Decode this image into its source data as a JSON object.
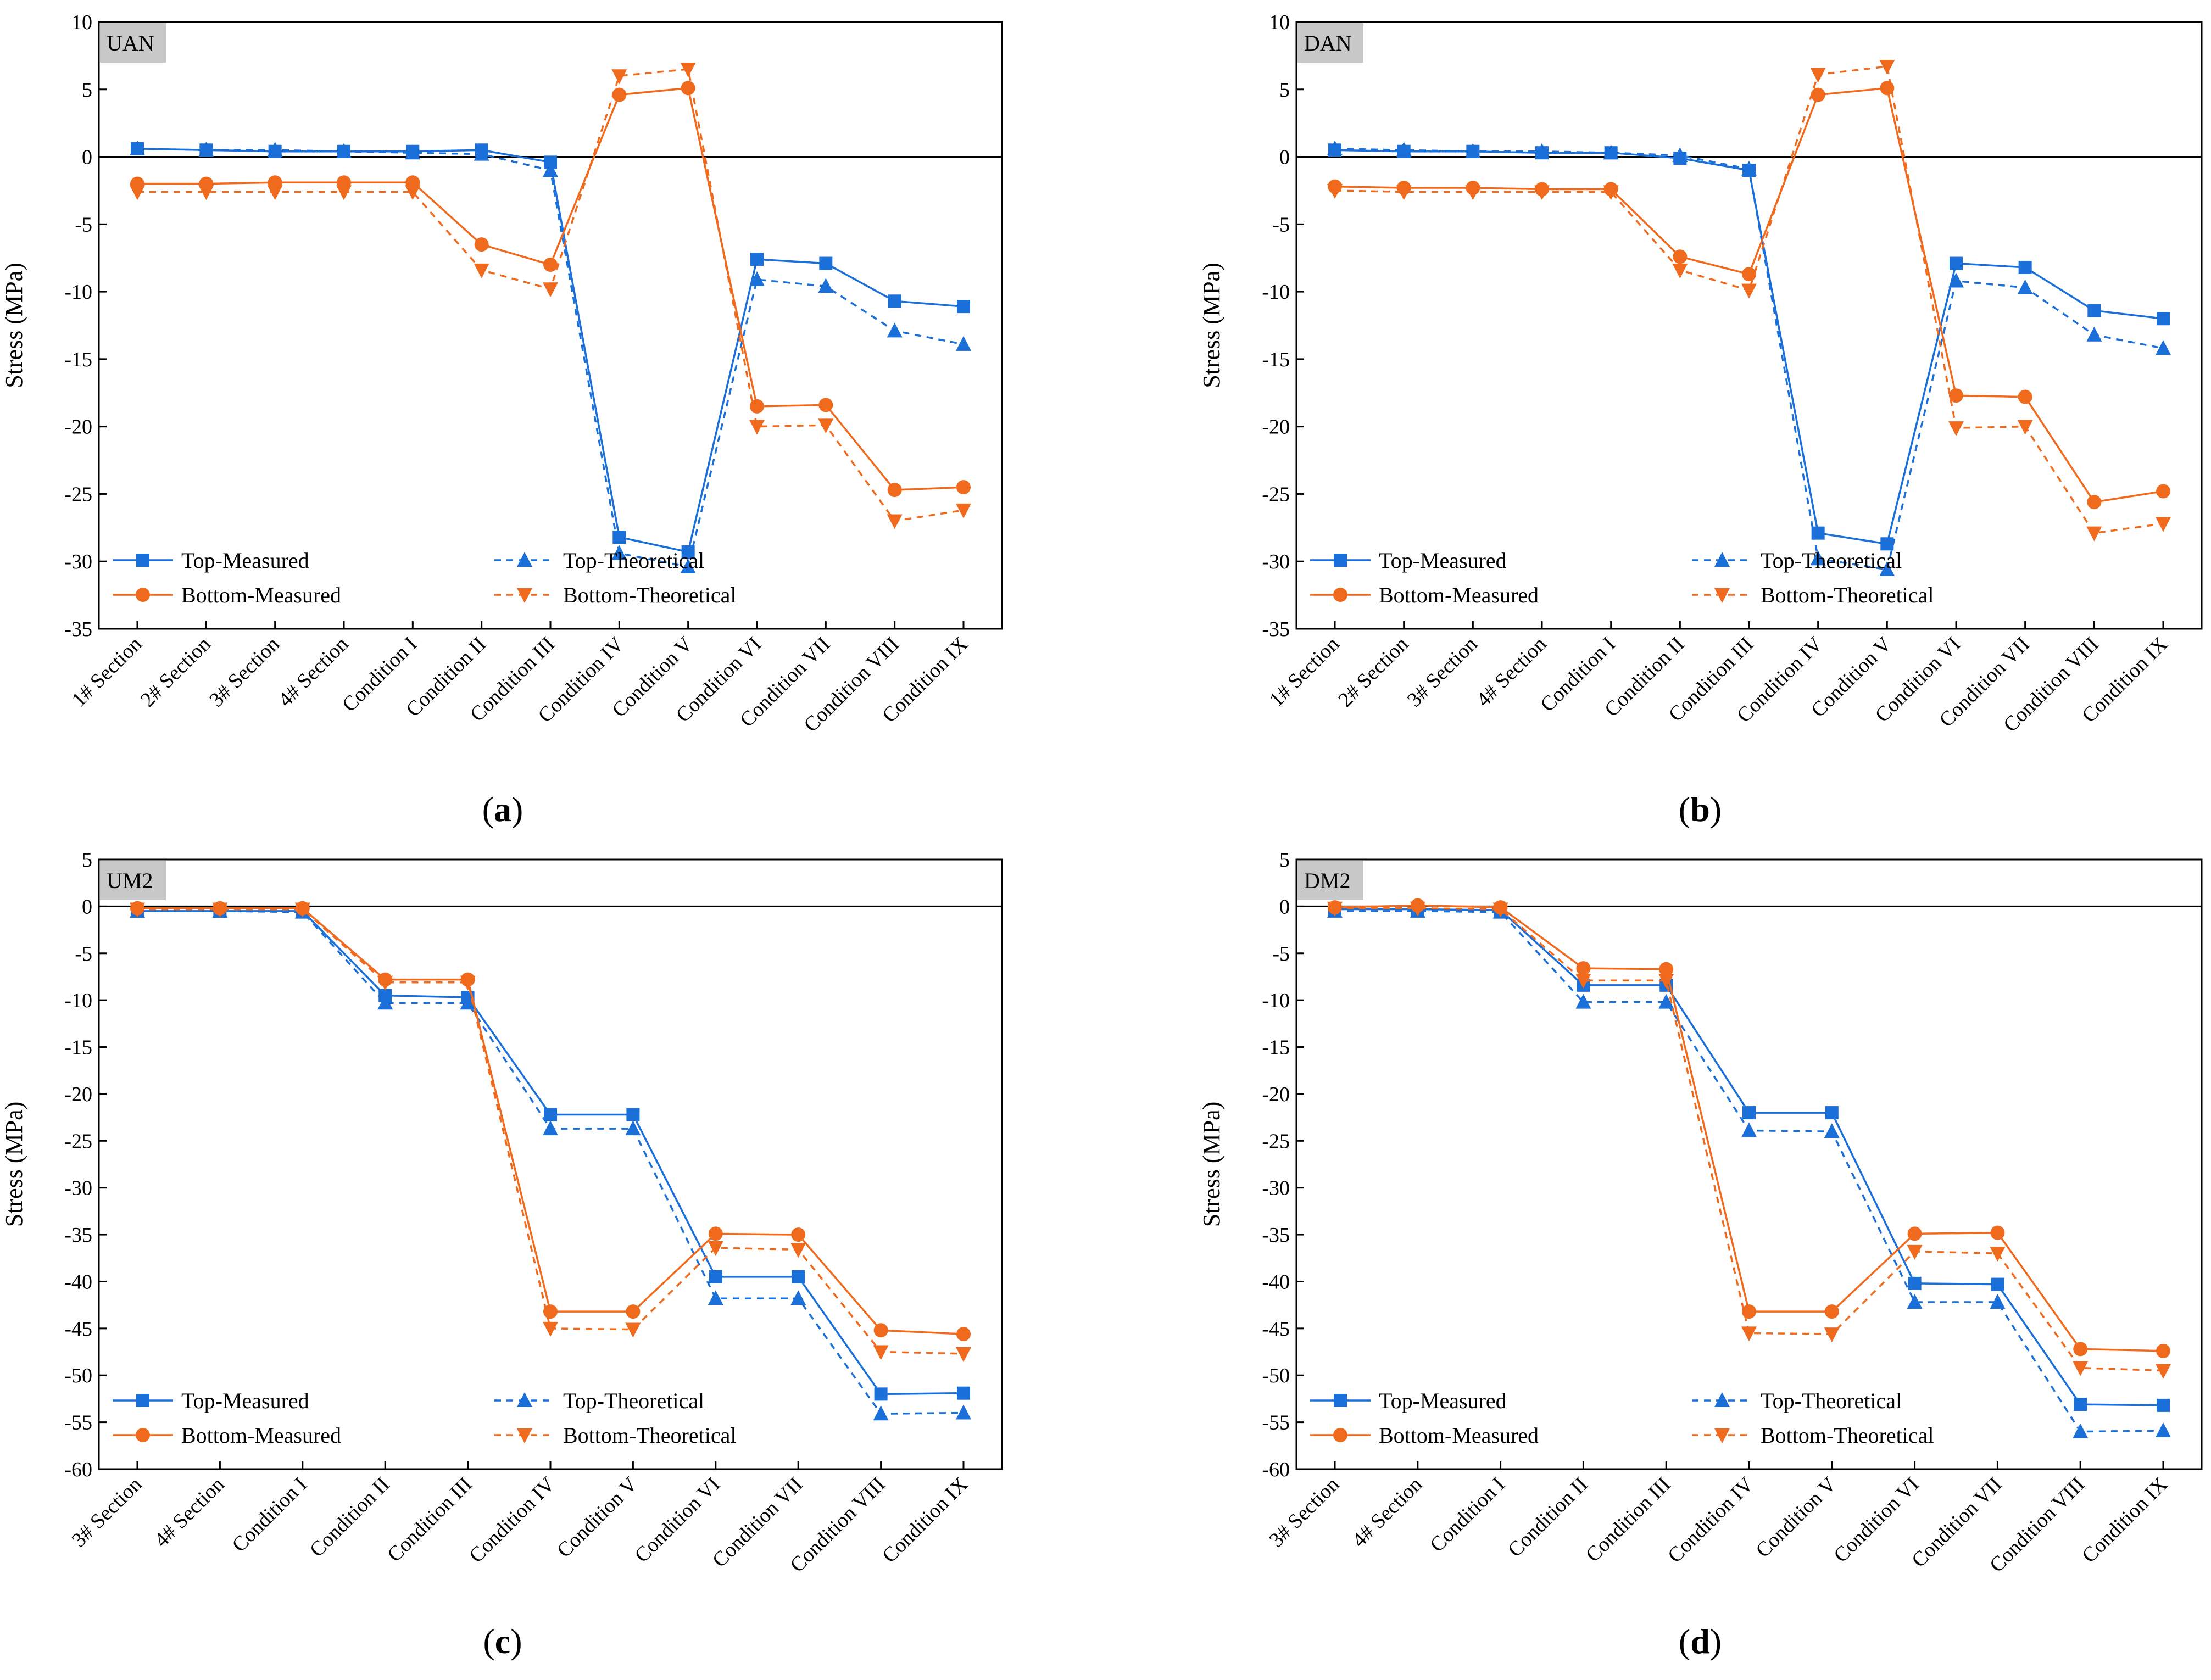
{
  "colors": {
    "top": "#1a6fd8",
    "bottom": "#f06a1e",
    "tag_bg": "#c8c8c8",
    "axis": "#000000"
  },
  "legend": [
    "Top-Measured",
    "Top-Theoretical",
    "Bottom-Measured",
    "Bottom-Theoretical"
  ],
  "chart_data": [
    {
      "type": "line",
      "panel_label": "UAN",
      "caption": "a",
      "ylabel": "Stress (MPa)",
      "xlabel": "",
      "ylim": [
        -35,
        10
      ],
      "yticks": [
        10,
        5,
        0,
        -5,
        -10,
        -15,
        -20,
        -25,
        -30,
        -35
      ],
      "categories": [
        "1# Section",
        "2# Section",
        "3# Section",
        "4# Section",
        "Condition I",
        "Condition II",
        "Condition III",
        "Condition IV",
        "Condition V",
        "Condition VI",
        "Condition VII",
        "Condition VIII",
        "Condition IX"
      ],
      "series": [
        {
          "name": "Top-Measured",
          "values": [
            0.6,
            0.5,
            0.4,
            0.4,
            0.4,
            0.5,
            -0.4,
            -28.2,
            -29.3,
            -7.6,
            -7.9,
            -10.7,
            -11.1
          ]
        },
        {
          "name": "Top-Theoretical",
          "values": [
            0.6,
            0.5,
            0.5,
            0.4,
            0.3,
            0.2,
            -1.0,
            -29.4,
            -30.4,
            -9.1,
            -9.6,
            -12.9,
            -13.9
          ]
        },
        {
          "name": "Bottom-Measured",
          "values": [
            -2.0,
            -2.0,
            -1.9,
            -1.9,
            -1.9,
            -6.5,
            -8.0,
            4.6,
            5.1,
            -18.5,
            -18.4,
            -24.7,
            -24.5
          ]
        },
        {
          "name": "Bottom-Theoretical",
          "values": [
            -2.6,
            -2.6,
            -2.6,
            -2.6,
            -2.6,
            -8.4,
            -9.8,
            6.0,
            6.5,
            -20.0,
            -19.9,
            -27.0,
            -26.2
          ]
        }
      ]
    },
    {
      "type": "line",
      "panel_label": "DAN",
      "caption": "b",
      "ylabel": "Stress (MPa)",
      "xlabel": "",
      "ylim": [
        -35,
        10
      ],
      "yticks": [
        10,
        5,
        0,
        -5,
        -10,
        -15,
        -20,
        -25,
        -30,
        -35
      ],
      "categories": [
        "1# Section",
        "2# Section",
        "3# Section",
        "4# Section",
        "Condition I",
        "Condition II",
        "Condition III",
        "Condition IV",
        "Condition V",
        "Condition VI",
        "Condition VII",
        "Condition VIII",
        "Condition IX"
      ],
      "series": [
        {
          "name": "Top-Measured",
          "values": [
            0.5,
            0.4,
            0.4,
            0.3,
            0.3,
            -0.1,
            -1.0,
            -27.9,
            -28.7,
            -7.9,
            -8.2,
            -11.4,
            -12.0
          ]
        },
        {
          "name": "Top-Theoretical",
          "values": [
            0.6,
            0.5,
            0.4,
            0.4,
            0.3,
            0.1,
            -0.9,
            -29.8,
            -30.6,
            -9.2,
            -9.7,
            -13.2,
            -14.2
          ]
        },
        {
          "name": "Bottom-Measured",
          "values": [
            -2.2,
            -2.3,
            -2.3,
            -2.4,
            -2.4,
            -7.4,
            -8.7,
            4.6,
            5.1,
            -17.7,
            -17.8,
            -25.6,
            -24.8
          ]
        },
        {
          "name": "Bottom-Theoretical",
          "values": [
            -2.5,
            -2.6,
            -2.6,
            -2.6,
            -2.6,
            -8.4,
            -9.9,
            6.1,
            6.7,
            -20.1,
            -20.0,
            -27.9,
            -27.2
          ]
        }
      ]
    },
    {
      "type": "line",
      "panel_label": "UM2",
      "caption": "c",
      "ylabel": "Stress (MPa)",
      "xlabel": "",
      "ylim": [
        -60,
        5
      ],
      "yticks": [
        5,
        0,
        -5,
        -10,
        -15,
        -20,
        -25,
        -30,
        -35,
        -40,
        -45,
        -50,
        -55,
        -60
      ],
      "categories": [
        "3# Section",
        "4# Section",
        "Condition I",
        "Condition II",
        "Condition III",
        "Condition IV",
        "Condition V",
        "Condition VI",
        "Condition VII",
        "Condition VIII",
        "Condition IX"
      ],
      "series": [
        {
          "name": "Top-Measured",
          "values": [
            -0.5,
            -0.5,
            -0.5,
            -9.5,
            -9.7,
            -22.2,
            -22.2,
            -39.5,
            -39.5,
            -52.0,
            -51.9
          ]
        },
        {
          "name": "Top-Theoretical",
          "values": [
            -0.5,
            -0.5,
            -0.6,
            -10.3,
            -10.3,
            -23.7,
            -23.7,
            -41.8,
            -41.8,
            -54.1,
            -54.0
          ]
        },
        {
          "name": "Bottom-Measured",
          "values": [
            -0.2,
            -0.2,
            -0.2,
            -7.8,
            -7.8,
            -43.2,
            -43.2,
            -34.9,
            -35.0,
            -45.2,
            -45.6
          ]
        },
        {
          "name": "Bottom-Theoretical",
          "values": [
            -0.3,
            -0.3,
            -0.3,
            -8.1,
            -8.1,
            -45.0,
            -45.1,
            -36.4,
            -36.6,
            -47.5,
            -47.7
          ]
        }
      ]
    },
    {
      "type": "line",
      "panel_label": "DM2",
      "caption": "d",
      "ylabel": "Stress (MPa)",
      "xlabel": "",
      "ylim": [
        -60,
        5
      ],
      "yticks": [
        5,
        0,
        -5,
        -10,
        -15,
        -20,
        -25,
        -30,
        -35,
        -40,
        -45,
        -50,
        -55,
        -60
      ],
      "categories": [
        "3# Section",
        "4# Section",
        "Condition I",
        "Condition II",
        "Condition III",
        "Condition IV",
        "Condition V",
        "Condition VI",
        "Condition VII",
        "Condition VIII",
        "Condition IX"
      ],
      "series": [
        {
          "name": "Top-Measured",
          "values": [
            -0.3,
            -0.3,
            -0.4,
            -8.4,
            -8.4,
            -22.0,
            -22.0,
            -40.2,
            -40.3,
            -53.1,
            -53.2
          ]
        },
        {
          "name": "Top-Theoretical",
          "values": [
            -0.5,
            -0.5,
            -0.6,
            -10.2,
            -10.2,
            -23.9,
            -24.0,
            -42.2,
            -42.2,
            -56.0,
            -55.9
          ]
        },
        {
          "name": "Bottom-Measured",
          "values": [
            -0.1,
            0.1,
            -0.1,
            -6.6,
            -6.7,
            -43.2,
            -43.2,
            -34.9,
            -34.8,
            -47.2,
            -47.4
          ]
        },
        {
          "name": "Bottom-Theoretical",
          "values": [
            -0.2,
            -0.2,
            -0.3,
            -7.9,
            -7.9,
            -45.5,
            -45.6,
            -36.8,
            -37.0,
            -49.2,
            -49.5
          ]
        }
      ]
    }
  ]
}
